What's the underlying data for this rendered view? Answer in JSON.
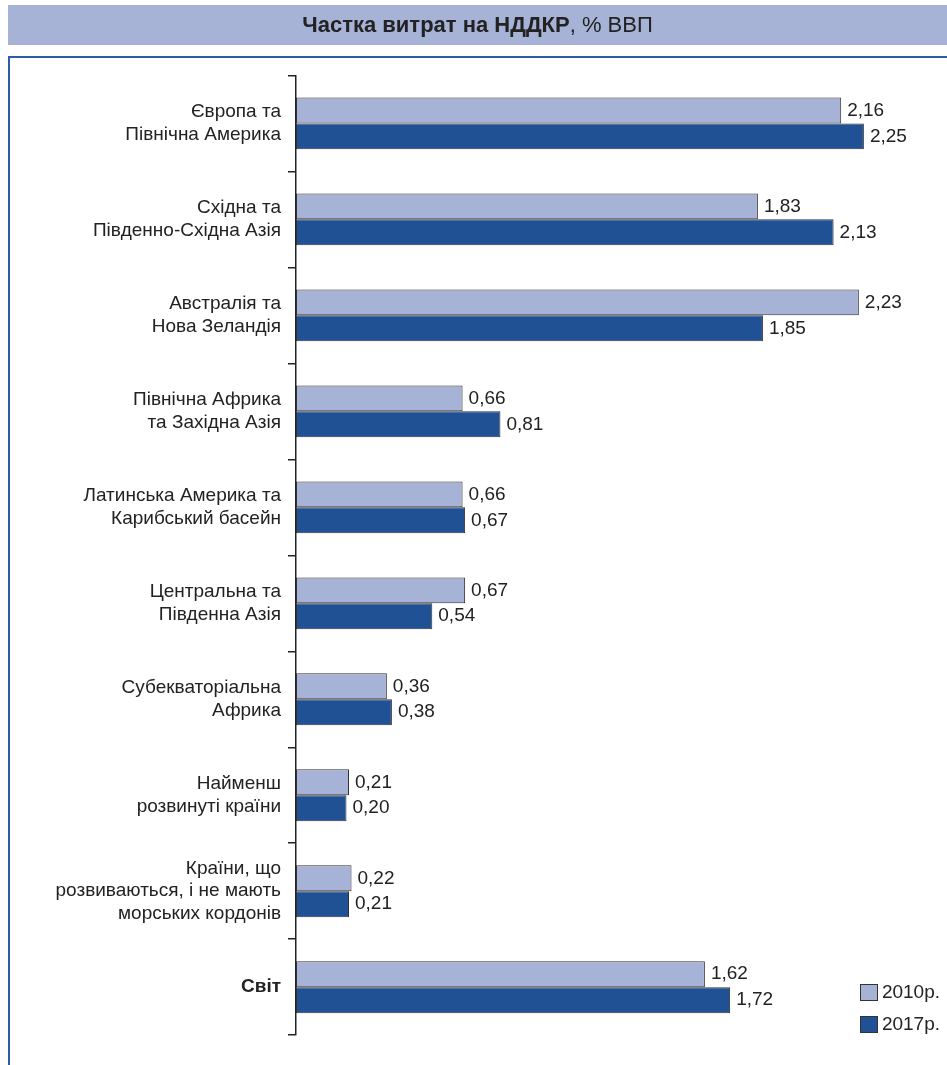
{
  "chart_data": {
    "type": "bar",
    "orientation": "horizontal",
    "title": "Частка витрат на НДДКР, % ВВП",
    "categories": [
      "Європа та\nПівнічна Америка",
      "Східна та\nПівденно-Східна Азія",
      "Австралія та\nНова Зеландія",
      "Північна Африка\nта Західна Азія",
      "Латинська Америка та\nКарибський басейн",
      "Центральна та\nПівденна Азія",
      "Субекваторіальна\nАфрика",
      "Найменш\nрозвинуті країни",
      "Країни, що\nрозвиваються, і не мають\nморських кордонів",
      "Світ"
    ],
    "series": [
      {
        "name": "2010р.",
        "color": "#a6b2d6",
        "values": [
          2.16,
          1.83,
          2.23,
          0.66,
          0.66,
          0.67,
          0.36,
          0.21,
          0.22,
          1.62
        ],
        "value_labels": [
          "2,16",
          "1,83",
          "2,23",
          "0,66",
          "0,66",
          "0,67",
          "0,36",
          "0,21",
          "0,22",
          "1,62"
        ]
      },
      {
        "name": "2017р.",
        "color": "#1f5194",
        "values": [
          2.25,
          2.13,
          1.85,
          0.81,
          0.67,
          0.54,
          0.38,
          0.2,
          0.21,
          1.72
        ],
        "value_labels": [
          "2,25",
          "2,13",
          "1,85",
          "0,81",
          "0,67",
          "0,54",
          "0,38",
          "0,20",
          "0,21",
          "1,72"
        ]
      }
    ],
    "tick_labels": "y",
    "legend": "bottom right"
  }
}
